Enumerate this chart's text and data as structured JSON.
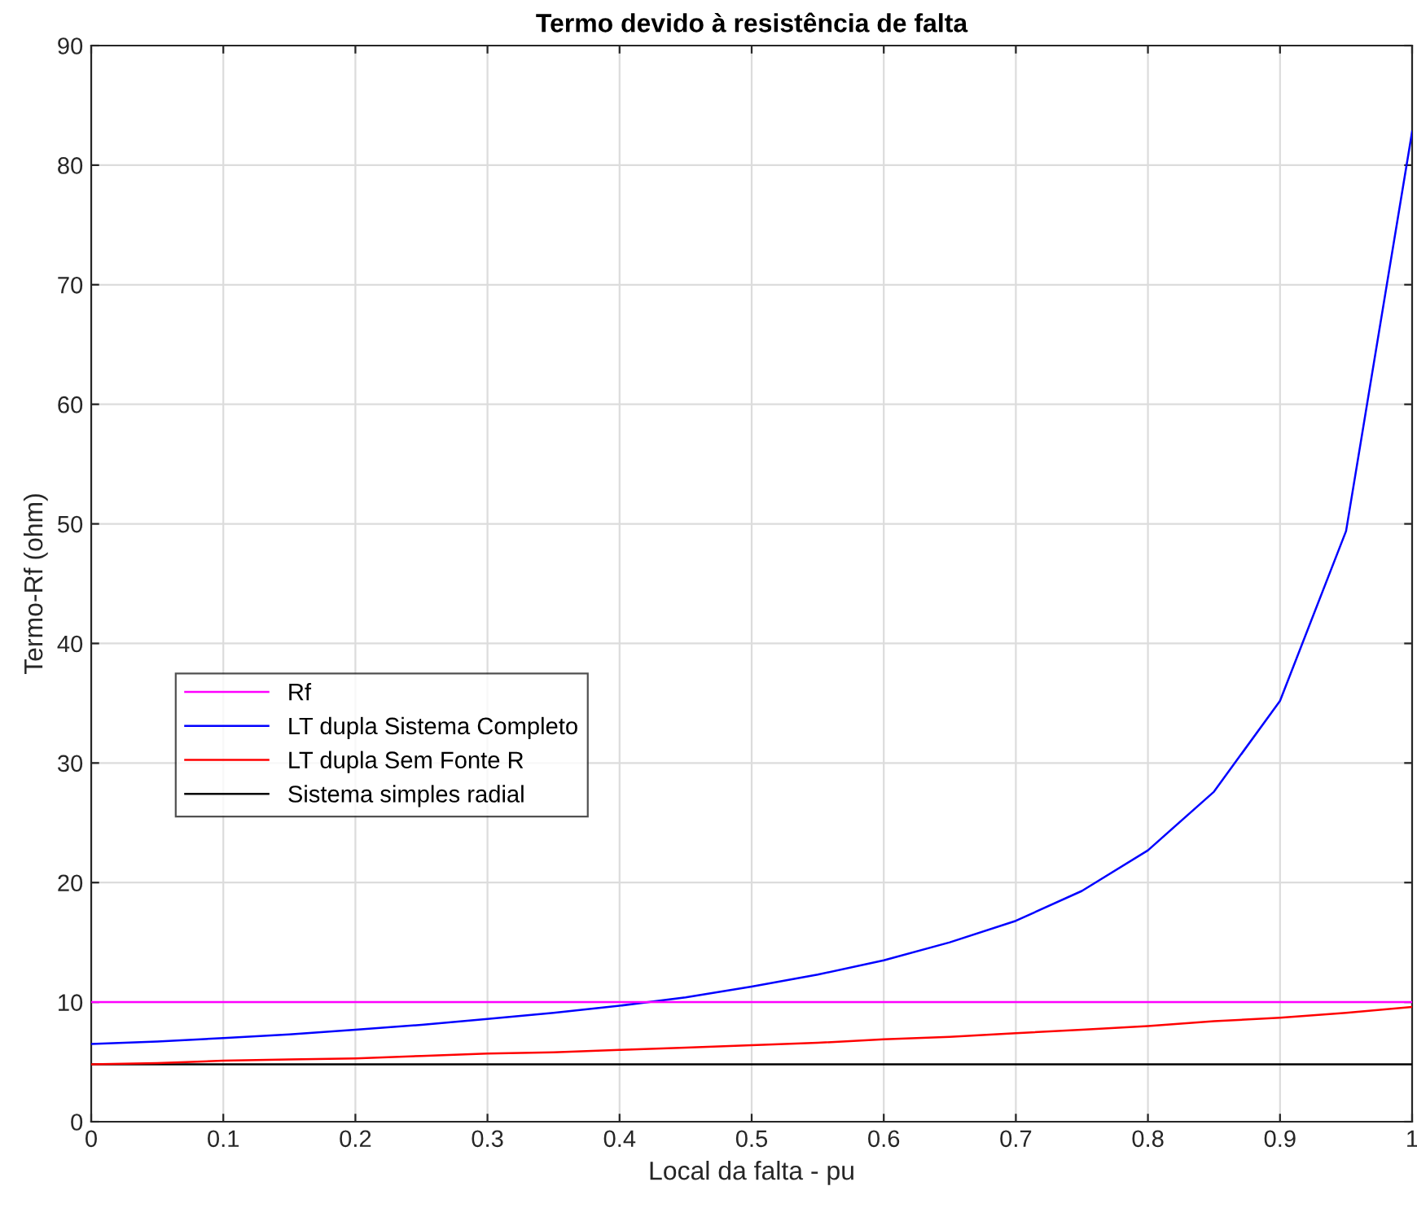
{
  "chart_data": {
    "type": "line",
    "title": "Termo devido à resistência de falta",
    "xlabel": "Local da falta - pu",
    "ylabel": "Termo-Rf (ohm)",
    "x": [
      0,
      0.05,
      0.1,
      0.15,
      0.2,
      0.25,
      0.3,
      0.35,
      0.4,
      0.45,
      0.5,
      0.55,
      0.6,
      0.65,
      0.7,
      0.75,
      0.8,
      0.85,
      0.9,
      0.95,
      1
    ],
    "series": [
      {
        "name": "Rf",
        "color": "#ff00ff",
        "values": [
          10,
          10,
          10,
          10,
          10,
          10,
          10,
          10,
          10,
          10,
          10,
          10,
          10,
          10,
          10,
          10,
          10,
          10,
          10,
          10,
          10
        ]
      },
      {
        "name": "LT dupla Sistema Completo",
        "color": "#0000ff",
        "values": [
          6.5,
          6.7,
          7.0,
          7.3,
          7.7,
          8.1,
          8.6,
          9.1,
          9.7,
          10.4,
          11.3,
          12.3,
          13.5,
          15.0,
          16.8,
          19.3,
          22.7,
          27.6,
          35.2,
          49.4,
          82.8
        ]
      },
      {
        "name": "LT dupla Sem Fonte R",
        "color": "#ff0000",
        "values": [
          4.8,
          4.9,
          5.1,
          5.2,
          5.3,
          5.5,
          5.7,
          5.8,
          6.0,
          6.2,
          6.4,
          6.6,
          6.9,
          7.1,
          7.4,
          7.7,
          8.0,
          8.4,
          8.7,
          9.1,
          9.6
        ]
      },
      {
        "name": "Sistema simples radial",
        "color": "#000000",
        "values": [
          4.8,
          4.8,
          4.8,
          4.8,
          4.8,
          4.8,
          4.8,
          4.8,
          4.8,
          4.8,
          4.8,
          4.8,
          4.8,
          4.8,
          4.8,
          4.8,
          4.8,
          4.8,
          4.8,
          4.8,
          4.8
        ]
      }
    ],
    "xlim": [
      0,
      1
    ],
    "xticks": [
      0,
      0.1,
      0.2,
      0.3,
      0.4,
      0.5,
      0.6,
      0.7,
      0.8,
      0.9,
      1
    ],
    "ylim": [
      0,
      90
    ],
    "yticks": [
      0,
      10,
      20,
      30,
      40,
      50,
      60,
      70,
      80,
      90
    ],
    "grid": true,
    "legend": "left",
    "marker": "none",
    "line_style": "solid"
  }
}
